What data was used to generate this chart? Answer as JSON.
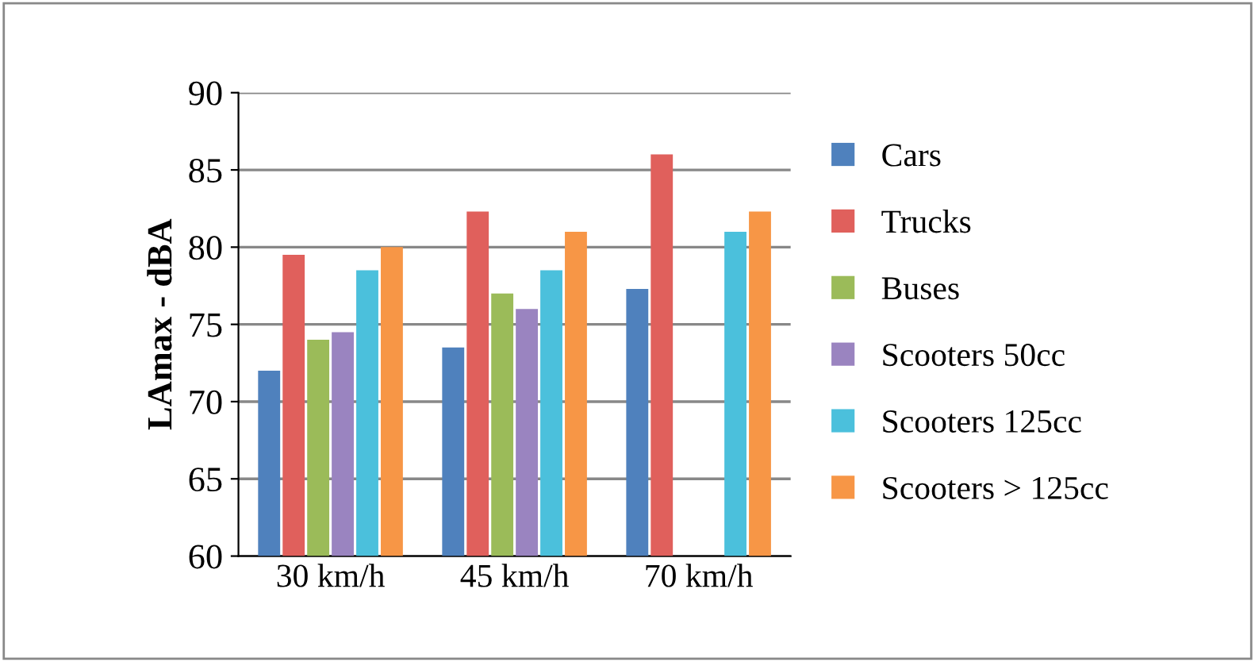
{
  "chart_data": {
    "type": "bar",
    "ylabel": "LAmax - dBA",
    "categories": [
      "30 km/h",
      "45 km/h",
      "70 km/h"
    ],
    "series": [
      {
        "name": "Cars",
        "color": "#4f81bd",
        "values": [
          72,
          73.5,
          77.3
        ]
      },
      {
        "name": "Trucks",
        "color": "#e0605c",
        "values": [
          79.5,
          82.3,
          86
        ]
      },
      {
        "name": "Buses",
        "color": "#9bbb59",
        "values": [
          74,
          77,
          null
        ]
      },
      {
        "name": "Scooters 50cc",
        "color": "#9a84c0",
        "values": [
          74.5,
          76,
          null
        ]
      },
      {
        "name": "Scooters 125cc",
        "color": "#4bc0dc",
        "values": [
          78.5,
          78.5,
          81
        ]
      },
      {
        "name": "Scooters > 125cc",
        "color": "#f79646",
        "values": [
          80,
          81,
          82.3
        ]
      }
    ],
    "ylim": [
      60,
      90
    ],
    "yticks": [
      60,
      65,
      70,
      75,
      80,
      85,
      90
    ],
    "grid": "y",
    "legend": "right"
  }
}
